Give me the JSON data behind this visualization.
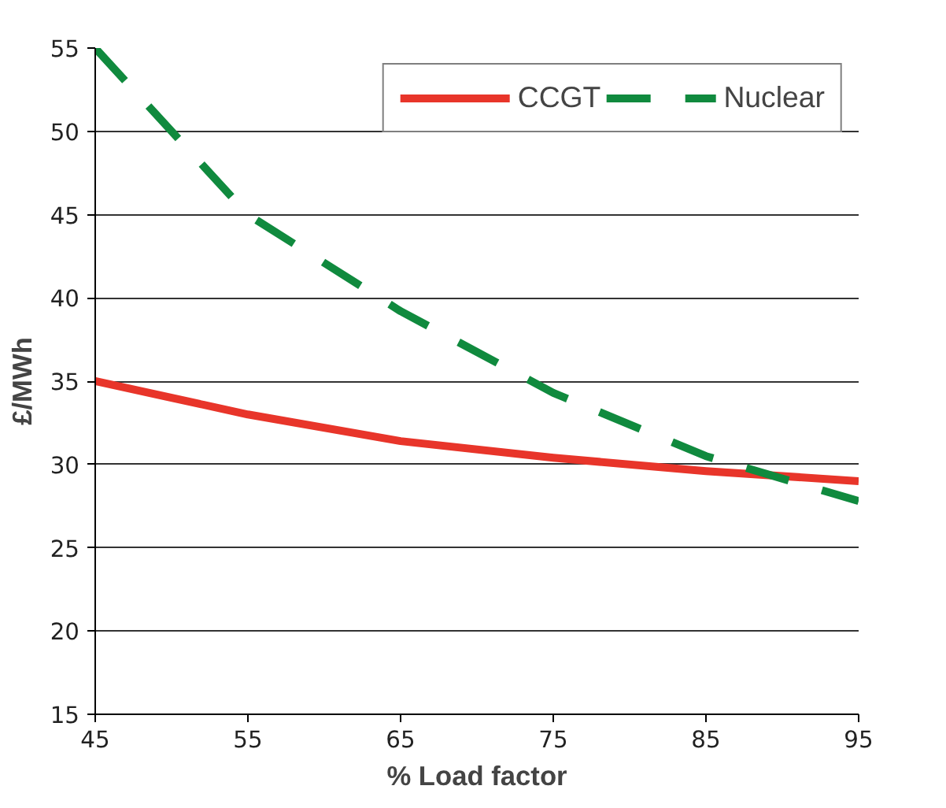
{
  "chart_data": {
    "type": "line",
    "xlabel": "% Load factor",
    "ylabel": "£/MWh",
    "x": [
      45,
      55,
      65,
      75,
      85,
      95
    ],
    "series": [
      {
        "name": "CCGT",
        "color": "#e8352a",
        "values": [
          35,
          33,
          31.4,
          30.4,
          29.6,
          29
        ],
        "line_style": "solid"
      },
      {
        "name": "Nuclear",
        "color": "#108a3e",
        "values": [
          55,
          45,
          39.2,
          34.3,
          30.5,
          27.8
        ],
        "line_style": "dashed"
      }
    ],
    "xlim": [
      45,
      95
    ],
    "xticks": [
      45,
      55,
      65,
      75,
      85,
      95
    ],
    "ylim": [
      15,
      55
    ],
    "yticks": [
      15,
      20,
      25,
      30,
      35,
      40,
      45,
      50,
      55
    ],
    "grid": "y",
    "legend": "top right",
    "marker": "none"
  }
}
